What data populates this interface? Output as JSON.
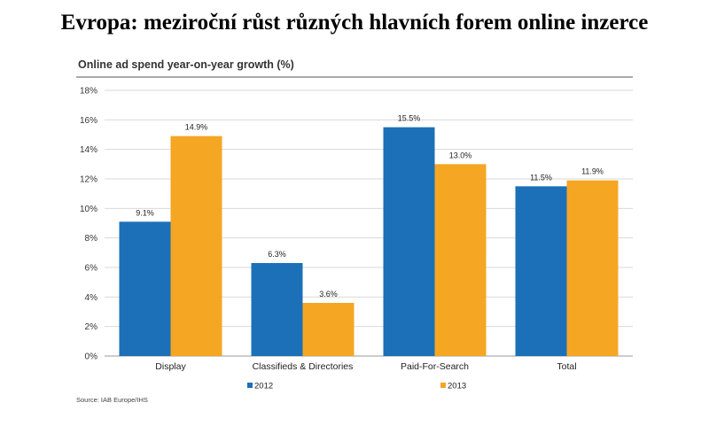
{
  "heading": "Evropa: meziroční růst různých hlavních forem online inzerce",
  "chart_data": {
    "type": "bar",
    "title": "Online ad spend year-on-year growth (%)",
    "categories": [
      "Display",
      "Classifieds & Directories",
      "Paid-For-Search",
      "Total"
    ],
    "series": [
      {
        "name": "2012",
        "values": [
          9.1,
          6.3,
          15.5,
          11.5
        ],
        "labels": [
          "9.1%",
          "6.3%",
          "15.5%",
          "11.5%"
        ],
        "color": "#1c70b8"
      },
      {
        "name": "2013",
        "values": [
          14.9,
          3.6,
          13.0,
          11.9
        ],
        "labels": [
          "14.9%",
          "3.6%",
          "13.0%",
          "11.9%"
        ],
        "color": "#f5a623"
      }
    ],
    "ylim": [
      0,
      18
    ],
    "yticks": [
      0,
      2,
      4,
      6,
      8,
      10,
      12,
      14,
      16,
      18
    ],
    "ytick_labels": [
      "0%",
      "2%",
      "4%",
      "6%",
      "8%",
      "10%",
      "12%",
      "14%",
      "16%",
      "18%"
    ],
    "grid": true,
    "legend_position": "bottom",
    "source": "Source: IAB Europe/IHS"
  }
}
